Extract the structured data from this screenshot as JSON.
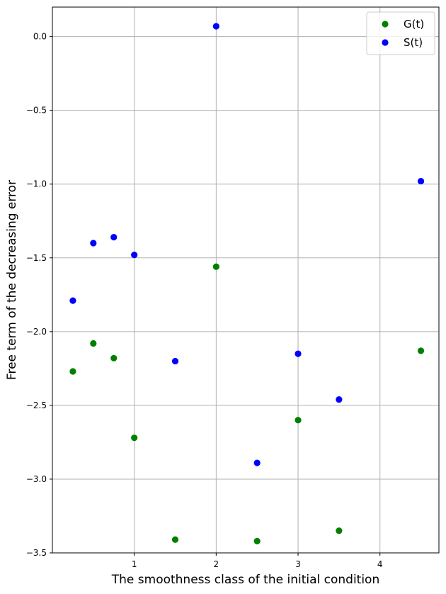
{
  "chart_data": {
    "type": "scatter",
    "xlabel": "The smoothness class of the initial condition",
    "ylabel": "Free term of the decreasing error",
    "xlim": [
      0.0,
      4.72
    ],
    "ylim": [
      -3.5,
      0.2
    ],
    "xticks": [
      1,
      2,
      3,
      4
    ],
    "yticks": [
      0.0,
      -0.5,
      -1.0,
      -1.5,
      -2.0,
      -2.5,
      -3.0,
      -3.5
    ],
    "ytick_labels": [
      "0.0",
      "−0.5",
      "−1.0",
      "−1.5",
      "−2.0",
      "−2.5",
      "−3.0",
      "−3.5"
    ],
    "grid": true,
    "legend_position": "top-right",
    "series": [
      {
        "name": "G(t)",
        "color": "#008000",
        "points": [
          [
            0.25,
            -2.27
          ],
          [
            0.5,
            -2.08
          ],
          [
            0.75,
            -2.18
          ],
          [
            1.0,
            -2.72
          ],
          [
            1.5,
            -3.41
          ],
          [
            2.0,
            -1.56
          ],
          [
            2.5,
            -3.42
          ],
          [
            3.0,
            -2.6
          ],
          [
            3.5,
            -3.35
          ],
          [
            4.5,
            -2.13
          ]
        ]
      },
      {
        "name": "S(t)",
        "color": "#0000ff",
        "points": [
          [
            0.25,
            -1.79
          ],
          [
            0.5,
            -1.4
          ],
          [
            0.75,
            -1.36
          ],
          [
            1.0,
            -1.48
          ],
          [
            1.5,
            -2.2
          ],
          [
            2.0,
            0.07
          ],
          [
            2.5,
            -2.89
          ],
          [
            3.0,
            -2.15
          ],
          [
            3.5,
            -2.46
          ],
          [
            4.5,
            -0.98
          ]
        ]
      }
    ]
  }
}
